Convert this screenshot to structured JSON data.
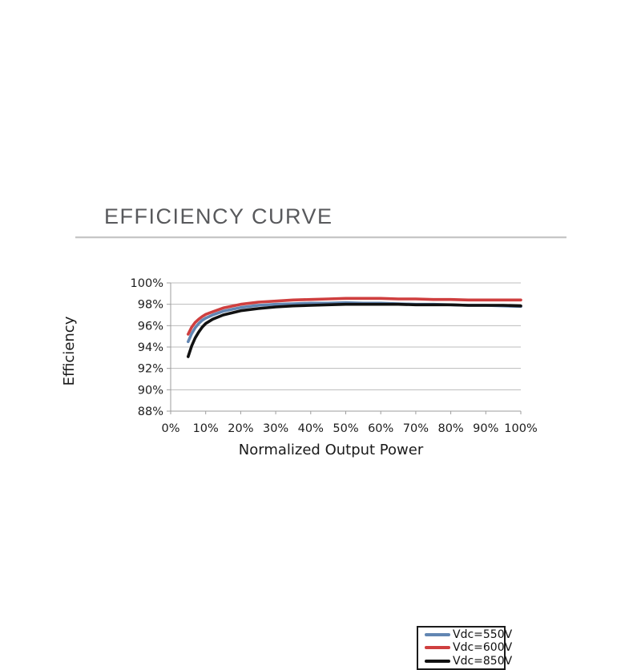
{
  "header": {
    "title": "EFFICIENCY CURVE"
  },
  "chart_data": {
    "type": "line",
    "title": "EFFICIENCY CURVE",
    "xlabel": "Normalized Output Power",
    "ylabel": "Efficiency",
    "xlim": [
      0,
      100
    ],
    "ylim": [
      88,
      100
    ],
    "x_tick_step": 10,
    "y_tick_step": 2,
    "x_tick_labels": [
      "0%",
      "10%",
      "20%",
      "30%",
      "40%",
      "50%",
      "60%",
      "70%",
      "80%",
      "90%",
      "100%"
    ],
    "y_tick_labels": [
      "88%",
      "90%",
      "92%",
      "94%",
      "96%",
      "98%",
      "100%"
    ],
    "grid": "horizontal",
    "legend_position": "inside-center-right",
    "colors": {
      "grid": "#bcbcbc",
      "axis": "#9e9e9e",
      "title_gray": "#58595c"
    },
    "x": [
      5,
      6,
      7,
      8,
      9,
      10,
      12,
      15,
      20,
      25,
      30,
      35,
      40,
      45,
      50,
      55,
      60,
      65,
      70,
      75,
      80,
      85,
      90,
      95,
      100
    ],
    "series": [
      {
        "name": "Vdc=550V",
        "color": "#6286b2",
        "values": [
          94.5,
          95.25,
          95.8,
          96.2,
          96.5,
          96.7,
          97.0,
          97.35,
          97.7,
          97.9,
          98.0,
          98.05,
          98.1,
          98.1,
          98.15,
          98.1,
          98.1,
          98.05,
          98.0,
          98.0,
          97.95,
          97.9,
          97.9,
          97.85,
          97.8
        ]
      },
      {
        "name": "Vdc=600V",
        "color": "#cf3f3f",
        "values": [
          95.2,
          95.85,
          96.3,
          96.6,
          96.85,
          97.05,
          97.3,
          97.65,
          98.0,
          98.2,
          98.3,
          98.4,
          98.45,
          98.5,
          98.55,
          98.55,
          98.55,
          98.5,
          98.5,
          98.45,
          98.45,
          98.4,
          98.4,
          98.4,
          98.4
        ]
      },
      {
        "name": "Vdc=850V",
        "color": "#111111",
        "values": [
          93.1,
          94.1,
          94.85,
          95.4,
          95.85,
          96.2,
          96.6,
          97.0,
          97.4,
          97.6,
          97.75,
          97.85,
          97.9,
          97.95,
          98.0,
          98.0,
          98.0,
          98.0,
          97.95,
          97.95,
          97.95,
          97.9,
          97.9,
          97.9,
          97.85
        ]
      }
    ]
  }
}
